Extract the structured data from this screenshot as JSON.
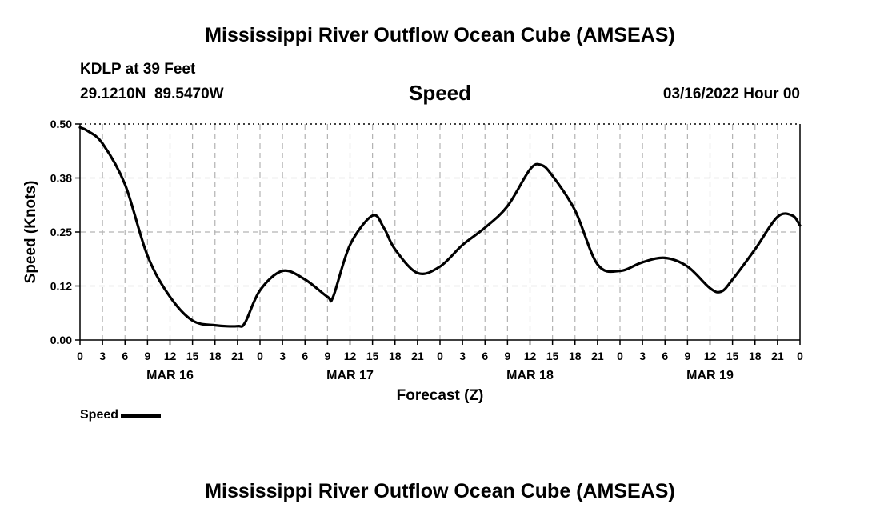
{
  "page": {
    "title": "Mississippi River Outflow Ocean Cube (AMSEAS)",
    "station": "KDLP at 39 Feet",
    "coords": "29.1210N  89.5470W",
    "chart_heading": "Speed",
    "forecast_time": "03/16/2022 Hour 00",
    "footer_title": "Mississippi River Outflow Ocean Cube (AMSEAS)"
  },
  "legend": {
    "label": "Speed",
    "color": "#000000"
  },
  "chart_data": {
    "type": "line",
    "title": "Speed",
    "xlabel": "Forecast (Z)",
    "ylabel": "Speed (Knots)",
    "ylim": [
      0,
      0.5
    ],
    "xlim_hours": [
      0,
      96
    ],
    "grid": true,
    "legend_position": "bottom-left",
    "y_ticks": [
      "0.00",
      "0.12",
      "0.25",
      "0.38",
      "0.50"
    ],
    "x_tick_labels": [
      "0",
      "3",
      "6",
      "9",
      "12",
      "15",
      "18",
      "21",
      "0",
      "3",
      "6",
      "9",
      "12",
      "15",
      "18",
      "21",
      "0",
      "3",
      "6",
      "9",
      "12",
      "15",
      "18",
      "21",
      "0",
      "3",
      "6",
      "9",
      "12",
      "15",
      "18",
      "21",
      "0"
    ],
    "date_labels": [
      {
        "label": "MAR 16",
        "hour": 12
      },
      {
        "label": "MAR 17",
        "hour": 36
      },
      {
        "label": "MAR 18",
        "hour": 60
      },
      {
        "label": "MAR 19",
        "hour": 84
      }
    ],
    "series": [
      {
        "name": "Speed",
        "color": "#000000",
        "x_hours": [
          0,
          1,
          3,
          6,
          9,
          12,
          15,
          18,
          21,
          22,
          24,
          27,
          30,
          33,
          33.75,
          36,
          39,
          40.5,
          42,
          45,
          48,
          51,
          54,
          57,
          60,
          61.5,
          63,
          66,
          69,
          72,
          75,
          78,
          81,
          84,
          85.5,
          87,
          90,
          93,
          95,
          96
        ],
        "values": [
          0.492,
          0.484,
          0.455,
          0.36,
          0.195,
          0.1,
          0.045,
          0.034,
          0.032,
          0.04,
          0.115,
          0.16,
          0.14,
          0.1,
          0.1,
          0.22,
          0.288,
          0.26,
          0.21,
          0.155,
          0.17,
          0.22,
          0.26,
          0.31,
          0.395,
          0.405,
          0.38,
          0.3,
          0.175,
          0.16,
          0.18,
          0.19,
          0.17,
          0.12,
          0.112,
          0.14,
          0.21,
          0.285,
          0.288,
          0.265
        ]
      }
    ]
  }
}
